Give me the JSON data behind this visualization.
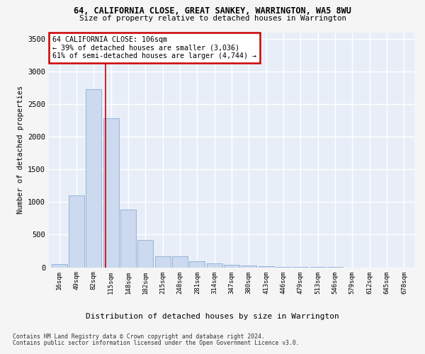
{
  "title": "64, CALIFORNIA CLOSE, GREAT SANKEY, WARRINGTON, WA5 8WU",
  "subtitle": "Size of property relative to detached houses in Warrington",
  "xlabel": "Distribution of detached houses by size in Warrington",
  "ylabel": "Number of detached properties",
  "bar_color": "#ccd9ee",
  "bar_edge_color": "#8aadd4",
  "background_color": "#e8eef8",
  "grid_color": "#ffffff",
  "fig_bg_color": "#f5f5f5",
  "categories": [
    "16sqm",
    "49sqm",
    "82sqm",
    "115sqm",
    "148sqm",
    "182sqm",
    "215sqm",
    "248sqm",
    "281sqm",
    "314sqm",
    "347sqm",
    "380sqm",
    "413sqm",
    "446sqm",
    "479sqm",
    "513sqm",
    "546sqm",
    "579sqm",
    "612sqm",
    "645sqm",
    "678sqm"
  ],
  "values": [
    50,
    1100,
    2730,
    2290,
    880,
    420,
    170,
    165,
    90,
    58,
    42,
    28,
    18,
    8,
    4,
    2,
    1,
    0,
    0,
    0,
    0
  ],
  "ylim": [
    0,
    3600
  ],
  "yticks": [
    0,
    500,
    1000,
    1500,
    2000,
    2500,
    3000,
    3500
  ],
  "property_line_x": 2.67,
  "annotation_line1": "64 CALIFORNIA CLOSE: 106sqm",
  "annotation_line2": "← 39% of detached houses are smaller (3,036)",
  "annotation_line3": "61% of semi-detached houses are larger (4,744) →",
  "annotation_box_color": "#ffffff",
  "annotation_border_color": "#cc0000",
  "property_line_color": "#cc0000",
  "footnote1": "Contains HM Land Registry data © Crown copyright and database right 2024.",
  "footnote2": "Contains public sector information licensed under the Open Government Licence v3.0."
}
